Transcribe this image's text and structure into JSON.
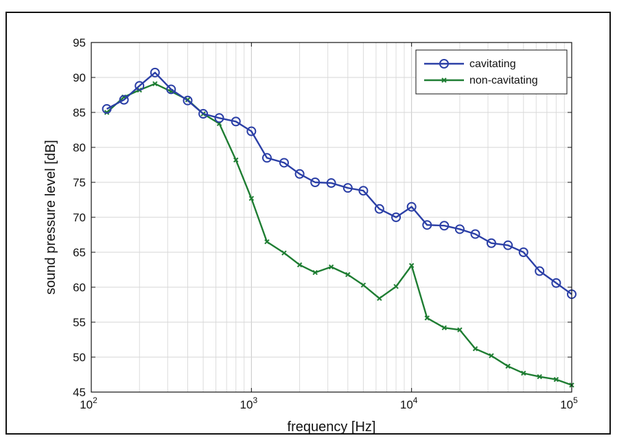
{
  "chart_data": {
    "type": "line",
    "title": "",
    "xlabel": "frequency [Hz]",
    "ylabel": "sound pressure level [dB]",
    "xscale": "log",
    "xlim": [
      100,
      100000
    ],
    "ylim": [
      45,
      95
    ],
    "grid": true,
    "legend_position": "top-right",
    "x_ticks": [
      {
        "value": 100,
        "base": "10",
        "exp": "2"
      },
      {
        "value": 1000,
        "base": "10",
        "exp": "3"
      },
      {
        "value": 10000,
        "base": "10",
        "exp": "4"
      },
      {
        "value": 100000,
        "base": "10",
        "exp": "5"
      }
    ],
    "y_ticks": [
      "45",
      "50",
      "55",
      "60",
      "65",
      "70",
      "75",
      "80",
      "85",
      "90",
      "95"
    ],
    "x": [
      125,
      160,
      200,
      250,
      315,
      400,
      500,
      630,
      800,
      1000,
      1250,
      1600,
      2000,
      2500,
      3150,
      4000,
      5000,
      6300,
      8000,
      10000,
      12500,
      16000,
      20000,
      25000,
      31500,
      40000,
      50000,
      63000,
      80000,
      100000
    ],
    "series": [
      {
        "name": "cavitating",
        "color": "#2b3fa6",
        "marker": "circle",
        "values": [
          85.5,
          86.8,
          88.8,
          90.7,
          88.3,
          86.7,
          84.8,
          84.2,
          83.7,
          82.3,
          78.5,
          77.8,
          76.2,
          75.0,
          74.9,
          74.2,
          73.8,
          71.2,
          70.0,
          71.5,
          68.9,
          68.8,
          68.3,
          67.6,
          66.3,
          66.0,
          65.0,
          62.3,
          60.6,
          59.0
        ]
      },
      {
        "name": "non-cavitating",
        "color": "#1e7d32",
        "marker": "x",
        "values": [
          85.0,
          87.2,
          88.2,
          89.1,
          88.0,
          86.8,
          84.8,
          83.4,
          78.2,
          72.7,
          66.5,
          64.9,
          63.2,
          62.1,
          62.9,
          61.8,
          60.3,
          58.4,
          60.1,
          63.1,
          55.6,
          54.2,
          53.9,
          51.2,
          50.2,
          48.7,
          47.7,
          47.2,
          46.8,
          46.0
        ]
      }
    ]
  }
}
